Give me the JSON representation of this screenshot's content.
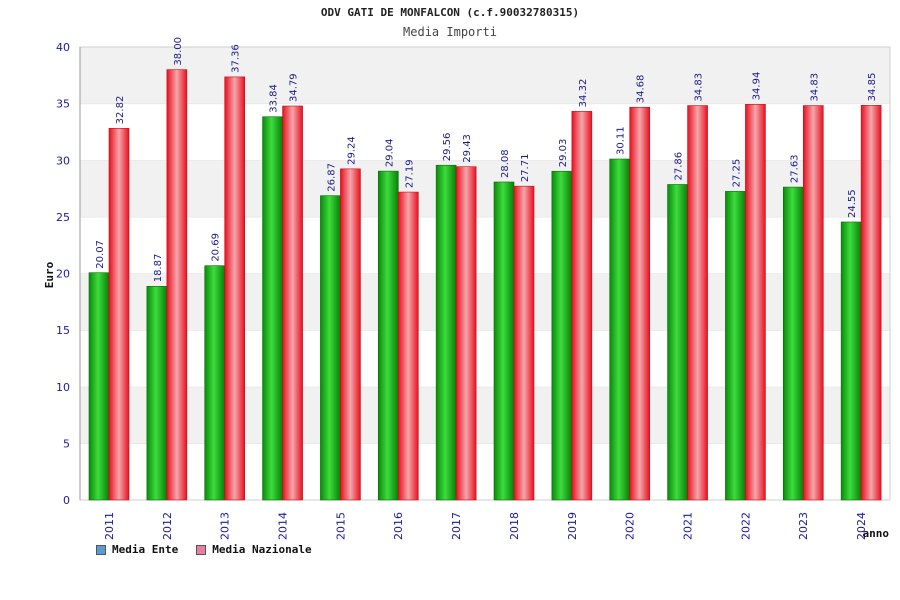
{
  "chart_data": {
    "type": "bar",
    "title": "ODV GATI DE MONFALCON (c.f.90032780315)",
    "subtitle": "Media Importi",
    "ylabel": "Euro",
    "xlabel": "anno",
    "ylim": [
      0,
      40
    ],
    "yticks": [
      0,
      5,
      10,
      15,
      20,
      25,
      30,
      35,
      40
    ],
    "grid": true,
    "legend_position": "bottom-left",
    "categories": [
      "2011",
      "2012",
      "2013",
      "2014",
      "2015",
      "2016",
      "2017",
      "2018",
      "2019",
      "2020",
      "2021",
      "2022",
      "2023",
      "2024"
    ],
    "series": [
      {
        "name": "Media Ente",
        "color": "#11b411",
        "legend_color": "#5b9bd5",
        "values": [
          20.07,
          18.87,
          20.69,
          33.84,
          26.87,
          29.04,
          29.56,
          28.08,
          29.03,
          30.11,
          27.86,
          27.25,
          27.63,
          24.55
        ],
        "labels": [
          "20.07",
          "18.87",
          "20.69",
          "33.84",
          "26.87",
          "29.04",
          "29.56",
          "28.08",
          "29.03",
          "30.11",
          "27.86",
          "27.25",
          "27.63",
          "24.55"
        ]
      },
      {
        "name": "Media Nazionale",
        "color": "#ee1c2a",
        "legend_color": "#e87ea1",
        "values": [
          32.82,
          38.0,
          37.36,
          34.79,
          29.24,
          27.19,
          29.43,
          27.71,
          34.32,
          34.68,
          34.83,
          34.94,
          34.83,
          34.85
        ],
        "labels": [
          "32.82",
          "38.00",
          "37.36",
          "34.79",
          "29.24",
          "27.19",
          "29.43",
          "27.71",
          "34.32",
          "34.68",
          "34.83",
          "34.94",
          "34.83",
          "34.85"
        ]
      }
    ]
  }
}
